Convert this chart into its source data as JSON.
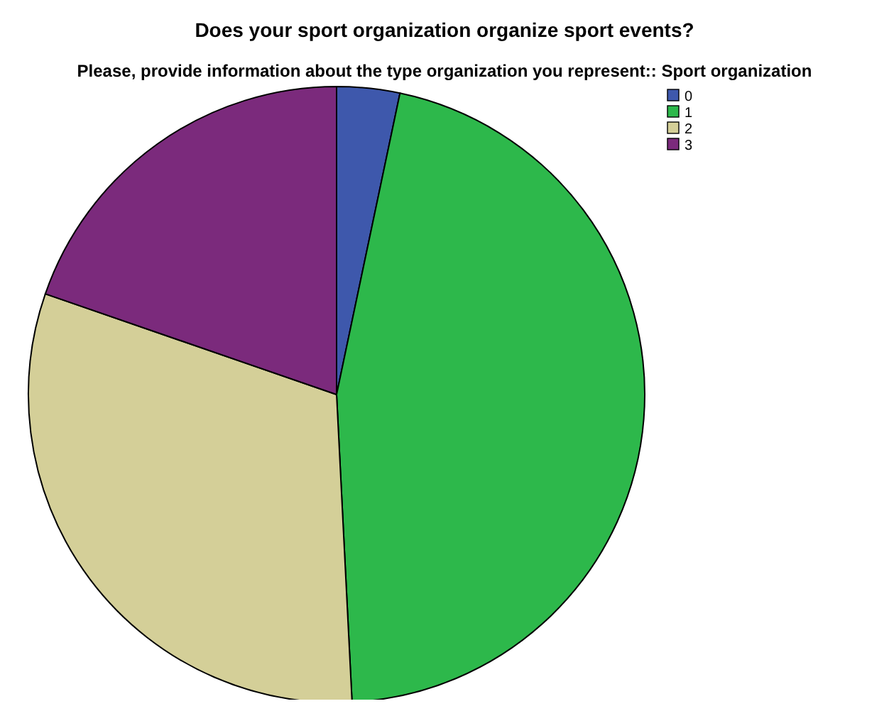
{
  "chart_data": {
    "type": "pie",
    "title": "Does your sport organization organize sport events?",
    "subtitle": "Please, provide information about the type organization you represent:: Sport organization",
    "categories": [
      "0",
      "1",
      "2",
      "3"
    ],
    "values": [
      3.3,
      45.9,
      31.1,
      19.7
    ],
    "colors": [
      "#3e58ac",
      "#2db84b",
      "#d4cf98",
      "#7b2a7c"
    ],
    "legend": "top right"
  }
}
